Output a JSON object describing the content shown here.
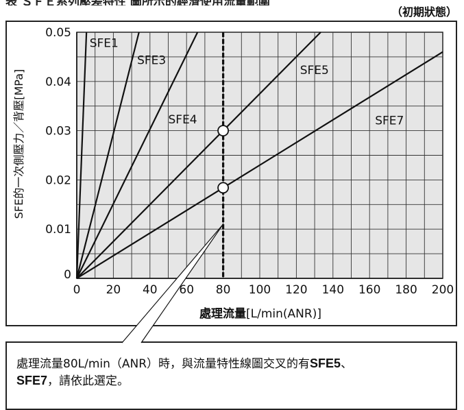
{
  "header": {
    "clipped_title": "表 ＳＦＥ系列壓差特性 圖所示的經濟使用流量範圍",
    "state_label": "（初期狀態）"
  },
  "chart_data": {
    "type": "line",
    "xlabel_main": "處理流量",
    "xlabel_unit": "[L/min(ANR)]",
    "ylabel": "SFE的一次側壓力／背壓[MPa]",
    "xlim": [
      0,
      200
    ],
    "ylim": [
      0,
      0.05
    ],
    "x_ticks": [
      0,
      20,
      40,
      60,
      80,
      100,
      120,
      140,
      160,
      180,
      200
    ],
    "y_ticks": [
      0,
      0.01,
      0.02,
      0.03,
      0.04,
      0.05
    ],
    "x_tick_labels": [
      "0",
      "20",
      "40",
      "60",
      "80",
      "100",
      "120",
      "140",
      "160",
      "180",
      "200"
    ],
    "y_tick_labels": [
      "0",
      "0.01",
      "0.02",
      "0.03",
      "0.04",
      "0.05"
    ],
    "grid": true,
    "series": [
      {
        "name": "SFE1",
        "x": [
          0,
          5.3
        ],
        "y": [
          0,
          0.05
        ],
        "label_at": [
          7,
          0.047
        ]
      },
      {
        "name": "SFE3",
        "x": [
          0,
          34
        ],
        "y": [
          0,
          0.05
        ],
        "label_at": [
          33,
          0.0435
        ]
      },
      {
        "name": "SFE4",
        "x": [
          0,
          66
        ],
        "y": [
          0,
          0.05
        ],
        "label_at": [
          50,
          0.0315
        ]
      },
      {
        "name": "SFE5",
        "x": [
          0,
          133.3
        ],
        "y": [
          0,
          0.05
        ],
        "label_at": [
          122,
          0.0415
        ]
      },
      {
        "name": "SFE7",
        "x": [
          0,
          200
        ],
        "y": [
          0,
          0.046
        ],
        "label_at": [
          163,
          0.0313
        ]
      }
    ],
    "reference_line": {
      "x": 80,
      "style": "dashed"
    },
    "intersections": [
      {
        "series": "SFE5",
        "x": 80,
        "y": 0.03
      },
      {
        "series": "SFE7",
        "x": 80,
        "y": 0.0184
      }
    ],
    "callout_anchor": {
      "x": 80,
      "y": 0.011
    }
  },
  "note": {
    "text_before": "處理流量80L/min（ANR）時，與流量特性線圖交叉的有",
    "em1": "SFE5",
    "sep": "、",
    "em2": "SFE7",
    "text_after": "，請依此選定。"
  }
}
